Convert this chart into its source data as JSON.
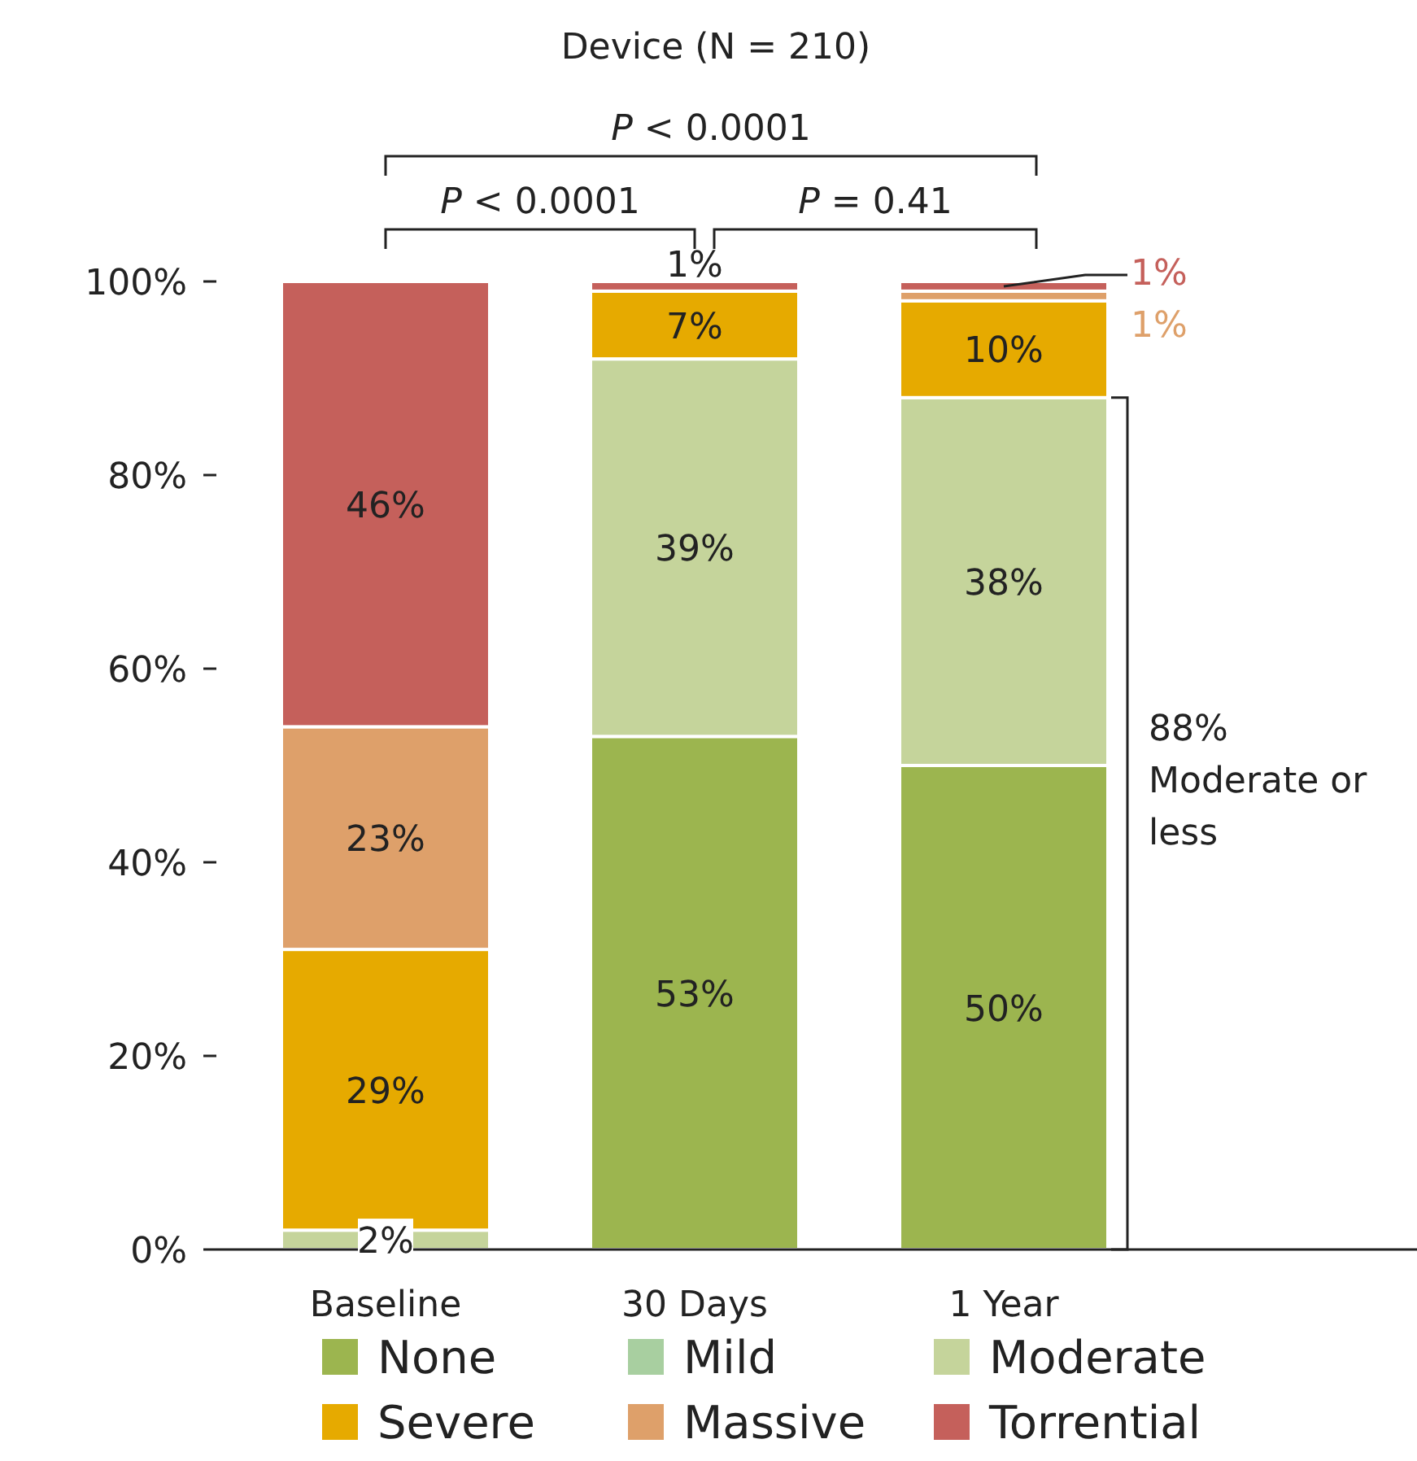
{
  "chart_data": {
    "type": "bar",
    "stacked": true,
    "title": "Device (N = 210)",
    "categories": [
      "Baseline",
      "30 Days",
      "1 Year"
    ],
    "series": [
      {
        "name": "None",
        "color": "#9cb54f",
        "values": [
          0,
          53,
          50
        ],
        "value_labels": [
          null,
          "53%",
          "50%"
        ]
      },
      {
        "name": "Mild",
        "color": "#a8cfa0",
        "values": [
          0,
          0,
          0
        ],
        "value_labels": [
          null,
          null,
          null
        ]
      },
      {
        "name": "Moderate",
        "color": "#c5d49b",
        "values": [
          2,
          39,
          38
        ],
        "value_labels": [
          "2%",
          "39%",
          "38%"
        ]
      },
      {
        "name": "Severe",
        "color": "#e6aa00",
        "values": [
          29,
          7,
          10
        ],
        "value_labels": [
          "29%",
          "7%",
          "10%"
        ]
      },
      {
        "name": "Massive",
        "color": "#dea06a",
        "values": [
          23,
          0,
          1
        ],
        "value_labels": [
          "23%",
          null,
          "1%"
        ]
      },
      {
        "name": "Torrential",
        "color": "#c5605b",
        "values": [
          46,
          1,
          1
        ],
        "value_labels": [
          "46%",
          "1%",
          "1%"
        ]
      }
    ],
    "ylim": [
      0,
      100
    ],
    "yticks": [
      {
        "value": 0,
        "label": "0%"
      },
      {
        "value": 20,
        "label": "20%"
      },
      {
        "value": 40,
        "label": "40%"
      },
      {
        "value": 60,
        "label": "60%"
      },
      {
        "value": 80,
        "label": "80%"
      },
      {
        "value": 100,
        "label": "100%"
      }
    ],
    "grid": false,
    "legend": "bottom",
    "annotations": [
      "P < 0.0001",
      "P < 0.0001",
      "P = 0.41",
      "88% Moderate or less"
    ]
  }
}
